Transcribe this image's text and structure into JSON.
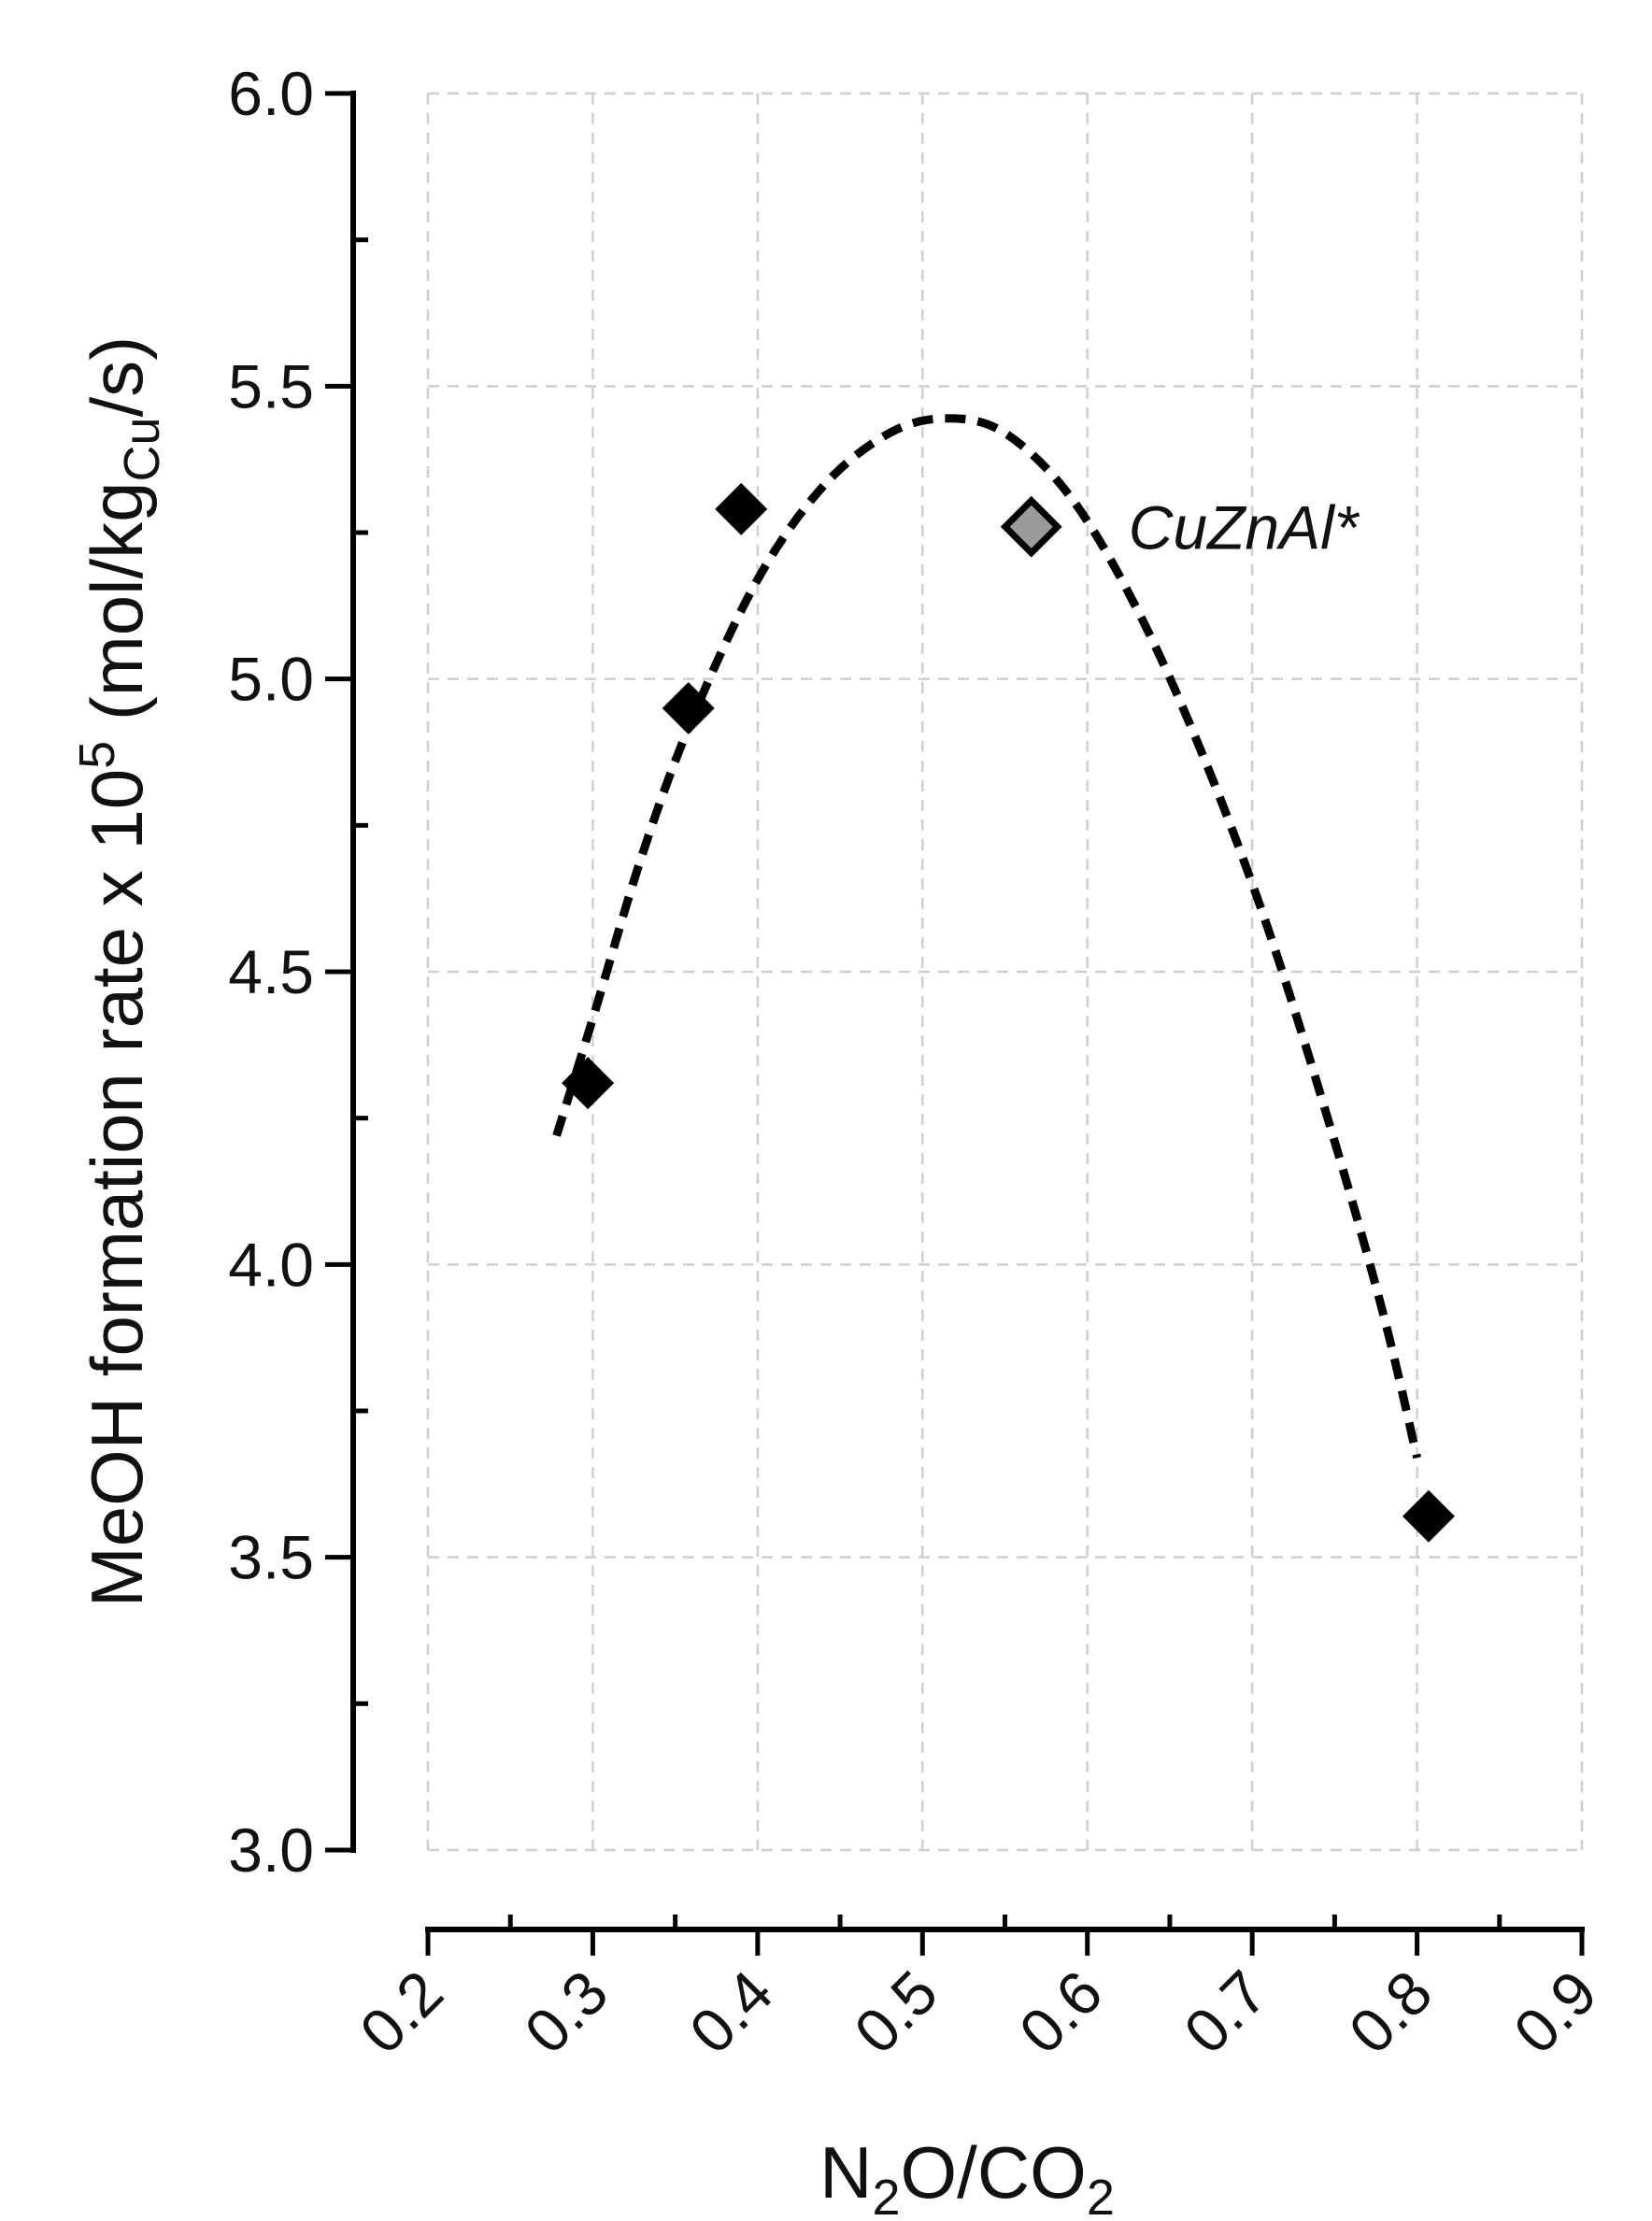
{
  "chart_data": {
    "type": "scatter",
    "title": "",
    "xlabel": {
      "main": "N",
      "sub1": "2",
      "mid": "O/CO",
      "sub2": "2"
    },
    "ylabel": {
      "pre": "MeOH formation rate x 10",
      "sup": "5",
      "mid": " (mol/kg",
      "sub": "Cu",
      "post": "/s)"
    },
    "xlim": [
      0.2,
      0.9
    ],
    "ylim": [
      3.0,
      6.0
    ],
    "x_ticks": [
      "0.2",
      "0.3",
      "0.4",
      "0.5",
      "0.6",
      "0.7",
      "0.8",
      "0.9"
    ],
    "x_tick_values": [
      0.2,
      0.3,
      0.4,
      0.5,
      0.6,
      0.7,
      0.8,
      0.9
    ],
    "y_ticks": [
      "3.0",
      "3.5",
      "4.0",
      "4.5",
      "5.0",
      "5.5",
      "6.0"
    ],
    "y_tick_values": [
      3.0,
      3.5,
      4.0,
      4.5,
      5.0,
      5.5,
      6.0
    ],
    "grid": true,
    "series": [
      {
        "marker": "diamond",
        "color": "#000000",
        "points": [
          {
            "x": 0.297,
            "y": 4.31
          },
          {
            "x": 0.358,
            "y": 4.95
          },
          {
            "x": 0.39,
            "y": 5.29
          },
          {
            "x": 0.807,
            "y": 3.57
          }
        ]
      },
      {
        "marker": "diamond",
        "color": "#9a9a9a",
        "edge_color": "#000000",
        "label": "CuZnAl*",
        "points": [
          {
            "x": 0.566,
            "y": 5.26
          }
        ]
      }
    ],
    "fit_curve": {
      "style": "dashed",
      "color": "#000000",
      "points": [
        {
          "x": 0.278,
          "y": 4.22
        },
        {
          "x": 0.3,
          "y": 4.42
        },
        {
          "x": 0.33,
          "y": 4.7
        },
        {
          "x": 0.36,
          "y": 4.93
        },
        {
          "x": 0.4,
          "y": 5.17
        },
        {
          "x": 0.44,
          "y": 5.33
        },
        {
          "x": 0.48,
          "y": 5.42
        },
        {
          "x": 0.515,
          "y": 5.445
        },
        {
          "x": 0.55,
          "y": 5.42
        },
        {
          "x": 0.59,
          "y": 5.31
        },
        {
          "x": 0.63,
          "y": 5.12
        },
        {
          "x": 0.67,
          "y": 4.87
        },
        {
          "x": 0.71,
          "y": 4.57
        },
        {
          "x": 0.75,
          "y": 4.21
        },
        {
          "x": 0.78,
          "y": 3.91
        },
        {
          "x": 0.8,
          "y": 3.67
        }
      ]
    }
  }
}
